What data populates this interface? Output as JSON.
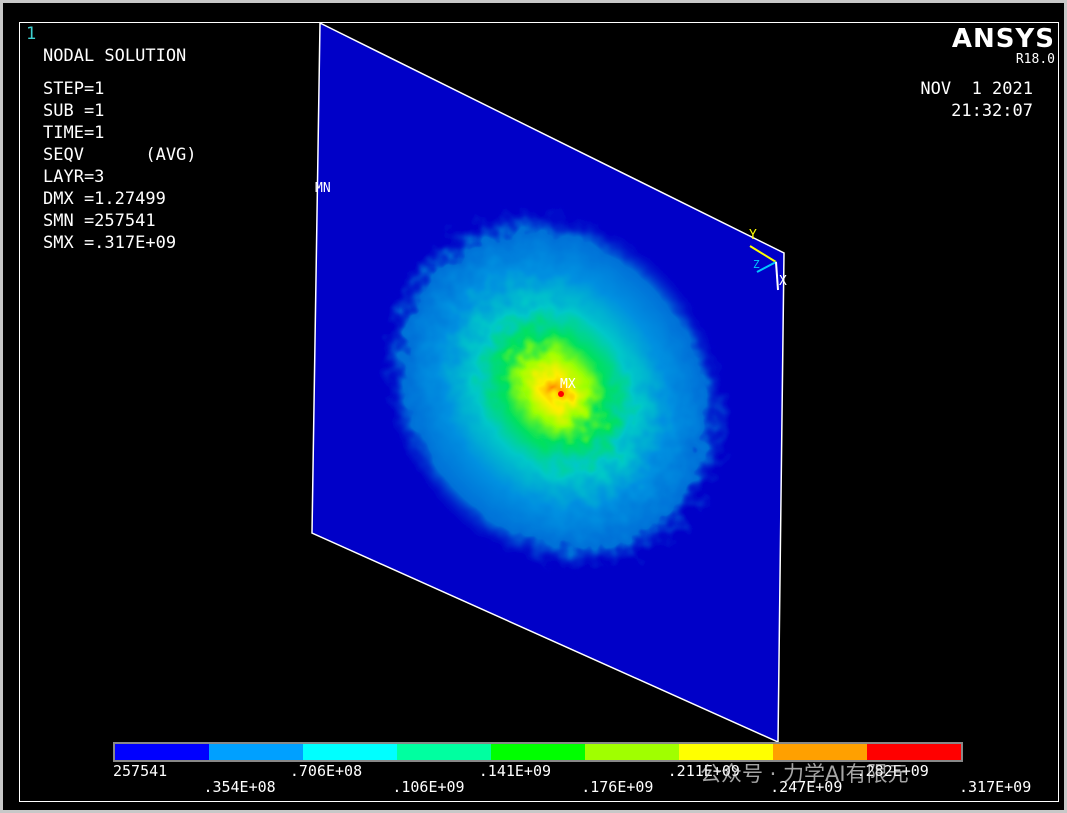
{
  "window_number": "1",
  "header": {
    "title": "NODAL SOLUTION",
    "lines": [
      "STEP=1",
      "SUB =1",
      "TIME=1",
      "SEQV      (AVG)",
      "LAYR=3",
      "DMX =1.27499",
      "SMN =257541",
      "SMX =.317E+09"
    ]
  },
  "logo": {
    "brand": "ANSYS",
    "version": "R18.0"
  },
  "timestamp": {
    "date": "NOV  1 2021",
    "time": "21:32:07"
  },
  "markers": {
    "min": "MN",
    "max": "MX"
  },
  "axis_triad": {
    "y": "Y",
    "z": "Z",
    "x": "X"
  },
  "legend": {
    "colors": [
      "#0000ff",
      "#00a0ff",
      "#00ffff",
      "#00ffa0",
      "#00ff00",
      "#a0ff00",
      "#ffff00",
      "#ffa000",
      "#ff0000"
    ],
    "top_labels": [
      "257541",
      ".706E+08",
      ".141E+09",
      ".211E+09",
      ".282E+09"
    ],
    "bottom_labels": [
      ".354E+08",
      ".106E+09",
      ".176E+09",
      ".247E+09",
      ".317E+09"
    ]
  },
  "watermark": "公众号 · 力学AI有限元"
}
